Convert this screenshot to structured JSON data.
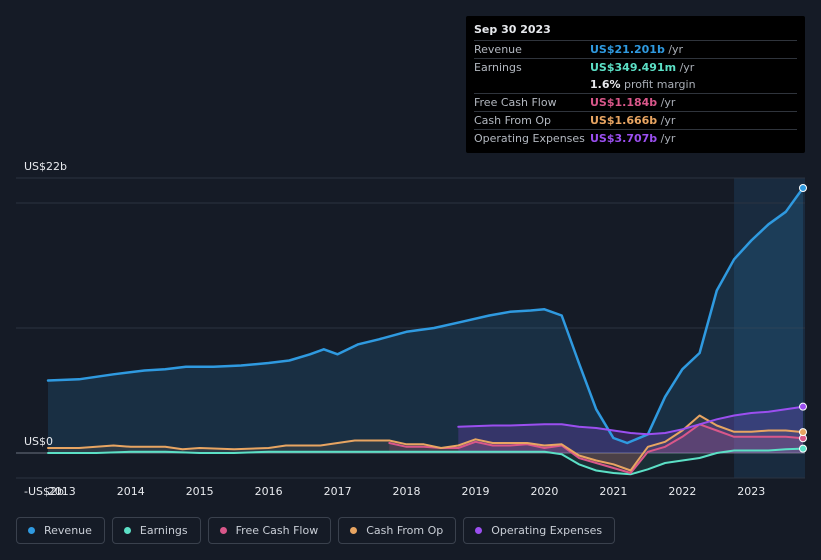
{
  "tooltip": {
    "date": "Sep 30 2023",
    "rows": [
      {
        "label": "Revenue",
        "value": "US$21.201b",
        "unit": " /yr",
        "color": "#2f9ae0"
      },
      {
        "label": "Earnings",
        "value": "US$349.491m",
        "unit": " /yr",
        "color": "#5ce0c6"
      },
      {
        "label": "",
        "value": "1.6%",
        "unit": " profit margin",
        "color": "#e8eaee"
      },
      {
        "label": "Free Cash Flow",
        "value": "US$1.184b",
        "unit": " /yr",
        "color": "#d9578a"
      },
      {
        "label": "Cash From Op",
        "value": "US$1.666b",
        "unit": " /yr",
        "color": "#e8a562"
      },
      {
        "label": "Operating Expenses",
        "value": "US$3.707b",
        "unit": " /yr",
        "color": "#9b4ff0"
      }
    ]
  },
  "legend": [
    {
      "label": "Revenue",
      "color": "#2f9ae0"
    },
    {
      "label": "Earnings",
      "color": "#5ce0c6"
    },
    {
      "label": "Free Cash Flow",
      "color": "#d9578a"
    },
    {
      "label": "Cash From Op",
      "color": "#e8a562"
    },
    {
      "label": "Operating Expenses",
      "color": "#9b4ff0"
    }
  ],
  "chart_data": {
    "type": "area",
    "y_labels": [
      "US$22b",
      "US$0",
      "-US$2b"
    ],
    "ylim": [
      -2,
      22
    ],
    "xlim": [
      2012.8,
      2023.75
    ],
    "x_ticks": [
      "2013",
      "2014",
      "2015",
      "2016",
      "2017",
      "2018",
      "2019",
      "2020",
      "2021",
      "2022",
      "2023"
    ],
    "highlight_from": 2022.75,
    "series": [
      {
        "name": "Revenue",
        "color": "#2f9ae0",
        "x": [
          2012.8,
          2013.25,
          2013.75,
          2014.2,
          2014.5,
          2014.8,
          2015.2,
          2015.6,
          2016.0,
          2016.3,
          2016.6,
          2016.8,
          2017.0,
          2017.3,
          2017.6,
          2018.0,
          2018.4,
          2018.8,
          2019.2,
          2019.5,
          2019.8,
          2020.0,
          2020.25,
          2020.5,
          2020.75,
          2021.0,
          2021.2,
          2021.5,
          2021.75,
          2022.0,
          2022.25,
          2022.5,
          2022.75,
          2023.0,
          2023.25,
          2023.5,
          2023.75
        ],
        "values": [
          5.8,
          5.9,
          6.3,
          6.6,
          6.7,
          6.9,
          6.9,
          7.0,
          7.2,
          7.4,
          7.9,
          8.3,
          7.9,
          8.7,
          9.1,
          9.7,
          10.0,
          10.5,
          11.0,
          11.3,
          11.4,
          11.5,
          11.0,
          7.2,
          3.5,
          1.2,
          0.8,
          1.5,
          4.5,
          6.7,
          8.0,
          13.0,
          15.5,
          17.0,
          18.3,
          19.3,
          21.2
        ]
      },
      {
        "name": "Earnings",
        "color": "#5ce0c6",
        "x": [
          2012.8,
          2013.5,
          2014.0,
          2014.5,
          2015.0,
          2015.5,
          2016.0,
          2016.5,
          2017.0,
          2017.5,
          2018.0,
          2018.5,
          2019.0,
          2019.5,
          2020.0,
          2020.25,
          2020.5,
          2020.75,
          2021.0,
          2021.25,
          2021.5,
          2021.75,
          2022.0,
          2022.25,
          2022.5,
          2022.75,
          2023.0,
          2023.25,
          2023.5,
          2023.75
        ],
        "values": [
          0.0,
          0.0,
          0.1,
          0.1,
          0.0,
          0.0,
          0.1,
          0.1,
          0.1,
          0.1,
          0.1,
          0.1,
          0.1,
          0.1,
          0.1,
          -0.1,
          -0.9,
          -1.4,
          -1.6,
          -1.7,
          -1.3,
          -0.8,
          -0.6,
          -0.4,
          0.0,
          0.2,
          0.2,
          0.2,
          0.3,
          0.35
        ]
      },
      {
        "name": "Free Cash Flow",
        "color": "#d9578a",
        "x": [
          2017.75,
          2018.0,
          2018.25,
          2018.5,
          2018.75,
          2019.0,
          2019.25,
          2019.5,
          2019.75,
          2020.0,
          2020.25,
          2020.5,
          2020.75,
          2021.0,
          2021.25,
          2021.5,
          2021.75,
          2022.0,
          2022.25,
          2022.5,
          2022.75,
          2023.0,
          2023.25,
          2023.5,
          2023.75
        ],
        "values": [
          0.8,
          0.5,
          0.5,
          0.4,
          0.4,
          0.9,
          0.6,
          0.6,
          0.7,
          0.4,
          0.6,
          -0.4,
          -0.8,
          -1.2,
          -1.6,
          0.1,
          0.5,
          1.3,
          2.3,
          1.8,
          1.3,
          1.3,
          1.3,
          1.3,
          1.18
        ]
      },
      {
        "name": "Cash From Op",
        "color": "#e8a562",
        "x": [
          2012.8,
          2013.25,
          2013.75,
          2014.0,
          2014.25,
          2014.5,
          2014.75,
          2015.0,
          2015.5,
          2016.0,
          2016.25,
          2016.75,
          2017.0,
          2017.25,
          2017.75,
          2018.0,
          2018.25,
          2018.5,
          2018.75,
          2019.0,
          2019.25,
          2019.5,
          2019.75,
          2020.0,
          2020.25,
          2020.5,
          2020.75,
          2021.0,
          2021.25,
          2021.5,
          2021.75,
          2022.0,
          2022.25,
          2022.5,
          2022.75,
          2023.0,
          2023.25,
          2023.5,
          2023.75
        ],
        "values": [
          0.4,
          0.4,
          0.6,
          0.5,
          0.5,
          0.5,
          0.3,
          0.4,
          0.3,
          0.4,
          0.6,
          0.6,
          0.8,
          1.0,
          1.0,
          0.7,
          0.7,
          0.4,
          0.6,
          1.1,
          0.8,
          0.8,
          0.8,
          0.6,
          0.7,
          -0.2,
          -0.6,
          -0.9,
          -1.4,
          0.5,
          0.9,
          1.8,
          3.0,
          2.2,
          1.7,
          1.7,
          1.8,
          1.8,
          1.67
        ]
      },
      {
        "name": "Operating Expenses",
        "color": "#9b4ff0",
        "x": [
          2018.75,
          2019.0,
          2019.25,
          2019.5,
          2019.75,
          2020.0,
          2020.25,
          2020.5,
          2020.75,
          2021.0,
          2021.25,
          2021.5,
          2021.75,
          2022.0,
          2022.25,
          2022.5,
          2022.75,
          2023.0,
          2023.25,
          2023.5,
          2023.75
        ],
        "values": [
          2.1,
          2.15,
          2.2,
          2.2,
          2.25,
          2.3,
          2.3,
          2.1,
          2.0,
          1.8,
          1.6,
          1.5,
          1.6,
          1.9,
          2.3,
          2.7,
          3.0,
          3.2,
          3.3,
          3.5,
          3.707
        ]
      }
    ]
  }
}
